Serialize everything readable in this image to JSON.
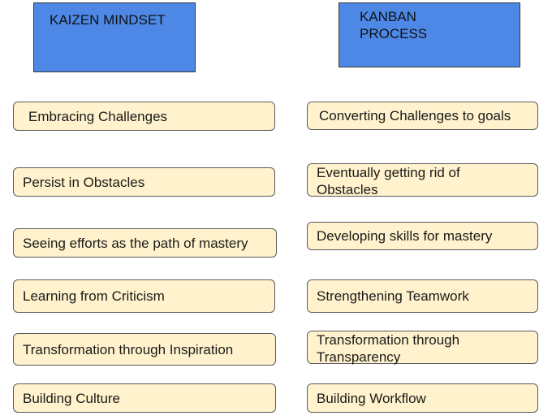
{
  "headers": {
    "left": "KAIZEN MINDSET",
    "right": "KANBAN\nPROCESS"
  },
  "left_items": [
    "Embracing Challenges",
    "Persist in Obstacles",
    "Seeing efforts as the path of mastery",
    "Learning from Criticism",
    "Transformation through Inspiration",
    "Building Culture"
  ],
  "right_items": [
    "Converting Challenges to goals",
    "Eventually getting rid of Obstacles",
    "Developing skills for mastery",
    "Strengthening Teamwork",
    "Transformation through Transparency",
    "Building Workflow"
  ],
  "colors": {
    "header_fill": "#4d88e6",
    "card_fill": "#fff2cc",
    "border": "#5a5a5a"
  }
}
